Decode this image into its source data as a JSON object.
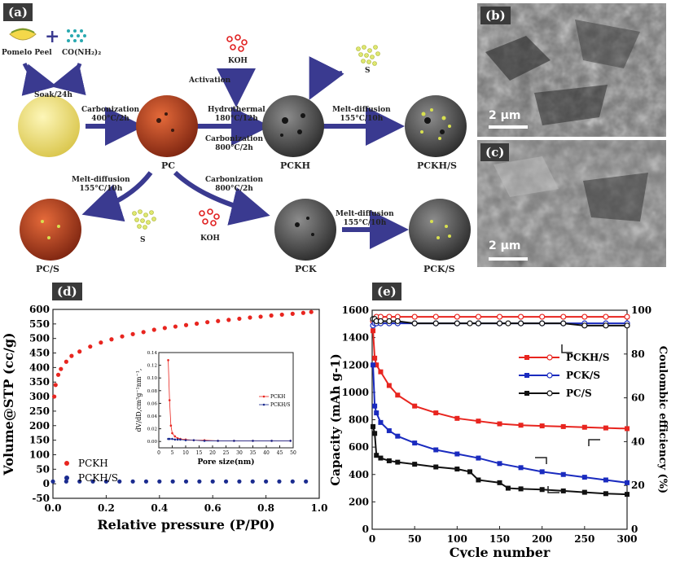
{
  "panel_labels": {
    "a": "(a)",
    "b": "(b)",
    "c": "(c)",
    "d": "(d)",
    "e": "(e)"
  },
  "scheme": {
    "pomelo": "Pomelo Peel",
    "urea": "CO(NH₂)₂",
    "soak": "Soak/24h",
    "carb1": [
      "Carbonization",
      "400°C/2h"
    ],
    "koh": "KOH",
    "activation": "Activation",
    "hydro": [
      "Hydrothermal",
      "180°C/12h"
    ],
    "carb2": [
      "Carbonization",
      "800°C/2h"
    ],
    "carb3": [
      "Carbonization",
      "800°C/2h"
    ],
    "melt1": [
      "Melt-diffusion",
      "155°C/10h"
    ],
    "melt2": [
      "Melt-diffusion",
      "155°C/10h"
    ],
    "melt3": [
      "Melt-diffusion",
      "155°C/10h"
    ],
    "s": "S",
    "pc": "PC",
    "pckh": "PCKH",
    "pckh_s": "PCKH/S",
    "pc_s": "PC/S",
    "pck": "PCK",
    "pck_s": "PCK/S",
    "plus": "+"
  },
  "sem": {
    "scale_b": "2 μm",
    "scale_c": "2 μm"
  },
  "chart_data": [
    {
      "panel": "d",
      "type": "scatter",
      "xlabel": "Relative pressure (P/P0)",
      "ylabel": "Volume@STP (cc/g)",
      "xlim": [
        0,
        1.0
      ],
      "ylim": [
        -50,
        600
      ],
      "xticks": [
        "0.0",
        "0.2",
        "0.4",
        "0.6",
        "0.8",
        "1.0"
      ],
      "yticks": [
        "-50",
        "0",
        "50",
        "100",
        "150",
        "200",
        "250",
        "300",
        "350",
        "400",
        "450",
        "500",
        "550",
        "600"
      ],
      "legend": [
        "PCKH",
        "PCKH/S"
      ],
      "series": [
        {
          "name": "PCKH",
          "color": "#e8251f",
          "x": [
            0.005,
            0.01,
            0.02,
            0.03,
            0.05,
            0.07,
            0.1,
            0.14,
            0.18,
            0.22,
            0.26,
            0.3,
            0.34,
            0.38,
            0.42,
            0.46,
            0.5,
            0.54,
            0.58,
            0.62,
            0.66,
            0.7,
            0.74,
            0.78,
            0.82,
            0.86,
            0.9,
            0.94,
            0.97
          ],
          "y": [
            300,
            340,
            375,
            395,
            420,
            440,
            455,
            472,
            486,
            497,
            507,
            515,
            522,
            530,
            536,
            541,
            546,
            551,
            556,
            560,
            564,
            568,
            572,
            575,
            579,
            582,
            585,
            588,
            591
          ]
        },
        {
          "name": "PCKH/S",
          "color": "#1a2b8f",
          "x": [
            0.0,
            0.05,
            0.1,
            0.15,
            0.2,
            0.25,
            0.3,
            0.35,
            0.4,
            0.45,
            0.5,
            0.55,
            0.6,
            0.65,
            0.7,
            0.75,
            0.8,
            0.85,
            0.9,
            0.95
          ],
          "y": [
            8,
            8,
            8,
            8,
            8,
            8,
            8,
            8,
            8,
            8,
            8,
            8,
            8,
            8,
            8,
            8,
            8,
            8,
            8,
            8
          ]
        }
      ]
    },
    {
      "panel": "d-inset",
      "type": "line",
      "xlabel": "Pore size(nm)",
      "ylabel": "dV/dD,cm³g⁻¹nm⁻¹,",
      "xlim": [
        0,
        50
      ],
      "ylim": [
        -0.01,
        0.14
      ],
      "xticks": [
        "0",
        "5",
        "10",
        "15",
        "20",
        "25",
        "30",
        "35",
        "40",
        "45",
        "50"
      ],
      "yticks": [
        "0.00",
        "0.02",
        "0.04",
        "0.06",
        "0.08",
        "0.10",
        "0.12",
        "0.14"
      ],
      "legend": [
        "PCKH",
        "PCKH/S"
      ],
      "series": [
        {
          "name": "PCKH",
          "color": "#e8251f",
          "x": [
            3.5,
            4,
            4.5,
            5,
            6,
            7,
            8,
            10,
            13,
            17,
            22,
            28,
            35,
            42,
            49
          ],
          "y": [
            0.128,
            0.065,
            0.025,
            0.013,
            0.008,
            0.005,
            0.004,
            0.003,
            0.002,
            0.002,
            0.001,
            0.001,
            0.001,
            0.001,
            0.001
          ]
        },
        {
          "name": "PCKH/S",
          "color": "#1a2b8f",
          "x": [
            3.5,
            4,
            5,
            6,
            7,
            8,
            10,
            13,
            17,
            22,
            28,
            35,
            42,
            49
          ],
          "y": [
            0.004,
            0.004,
            0.004,
            0.003,
            0.003,
            0.003,
            0.002,
            0.002,
            0.001,
            0.001,
            0.001,
            0.001,
            0.001,
            0.001
          ]
        }
      ]
    },
    {
      "panel": "e",
      "type": "line",
      "xlabel": "Cycle number",
      "ylabel": "Capacity (mAh g-1)",
      "y2label": "Coulombic efficiency (%)",
      "xlim": [
        0,
        300
      ],
      "ylim": [
        0,
        1600
      ],
      "y2lim": [
        0,
        100
      ],
      "xticks": [
        "0",
        "50",
        "100",
        "150",
        "200",
        "250",
        "300"
      ],
      "yticks": [
        "0",
        "200",
        "400",
        "600",
        "800",
        "1000",
        "1200",
        "1400",
        "1600"
      ],
      "y2ticks": [
        "0",
        "20",
        "40",
        "60",
        "80",
        "100"
      ],
      "legend": [
        "PCKH/S",
        "PCK/S",
        "PC/S"
      ],
      "series": [
        {
          "name": "PCKH/S",
          "color": "#e8251f",
          "x": [
            1,
            3,
            5,
            10,
            20,
            30,
            50,
            75,
            100,
            125,
            150,
            175,
            200,
            225,
            250,
            275,
            300
          ],
          "capacity": [
            1450,
            1250,
            1200,
            1150,
            1050,
            980,
            900,
            850,
            810,
            790,
            770,
            760,
            755,
            750,
            745,
            740,
            735
          ],
          "ce": [
            95,
            96,
            97,
            97,
            97,
            97,
            97,
            97,
            97,
            97,
            97,
            97,
            97,
            97,
            97,
            97,
            97
          ]
        },
        {
          "name": "PCK/S",
          "color": "#1a2bbf",
          "x": [
            1,
            3,
            5,
            10,
            20,
            30,
            50,
            75,
            100,
            125,
            150,
            175,
            200,
            225,
            250,
            275,
            300
          ],
          "capacity": [
            1200,
            900,
            850,
            780,
            720,
            680,
            630,
            580,
            550,
            520,
            480,
            450,
            420,
            400,
            380,
            360,
            340
          ],
          "ce": [
            93,
            94,
            94,
            94,
            94,
            94,
            94,
            94,
            94,
            94,
            94,
            94,
            94,
            94,
            94,
            94,
            94
          ]
        },
        {
          "name": "PC/S",
          "color": "#111111",
          "x": [
            1,
            3,
            5,
            10,
            20,
            30,
            50,
            75,
            100,
            115,
            125,
            150,
            160,
            175,
            200,
            225,
            250,
            275,
            300
          ],
          "capacity": [
            750,
            700,
            540,
            520,
            500,
            490,
            475,
            455,
            440,
            420,
            360,
            340,
            300,
            295,
            290,
            280,
            270,
            260,
            255
          ],
          "ce": [
            96,
            96,
            95,
            95,
            95,
            95,
            94,
            94,
            94,
            94,
            94,
            94,
            94,
            94,
            94,
            94,
            93,
            93,
            93
          ]
        }
      ]
    }
  ]
}
